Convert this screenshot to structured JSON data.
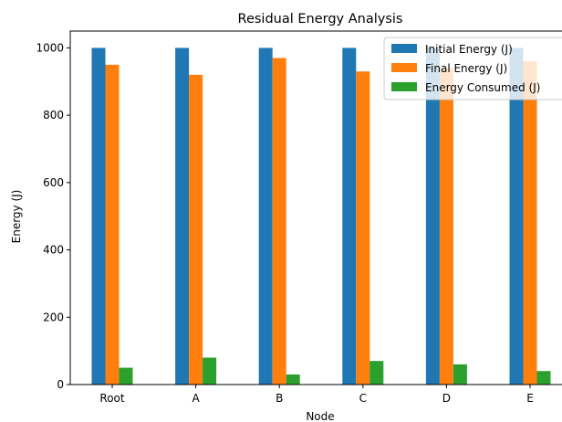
{
  "chart_data": {
    "type": "bar",
    "title": "Residual Energy Analysis",
    "xlabel": "Node",
    "ylabel": "Energy (J)",
    "categories": [
      "Root",
      "A",
      "B",
      "C",
      "D",
      "E"
    ],
    "series": [
      {
        "name": "Initial Energy (J)",
        "color": "#1f77b4",
        "values": [
          1000,
          1000,
          1000,
          1000,
          1000,
          1000
        ]
      },
      {
        "name": "Final Energy (J)",
        "color": "#ff7f0e",
        "values": [
          950,
          920,
          970,
          930,
          940,
          960
        ]
      },
      {
        "name": "Energy Consumed (J)",
        "color": "#2ca02c",
        "values": [
          50,
          80,
          30,
          70,
          60,
          40
        ]
      }
    ],
    "ylim": [
      0,
      1050
    ],
    "yticks": [
      0,
      200,
      400,
      600,
      800,
      1000
    ],
    "grid": false,
    "legend_position": "top-right"
  }
}
